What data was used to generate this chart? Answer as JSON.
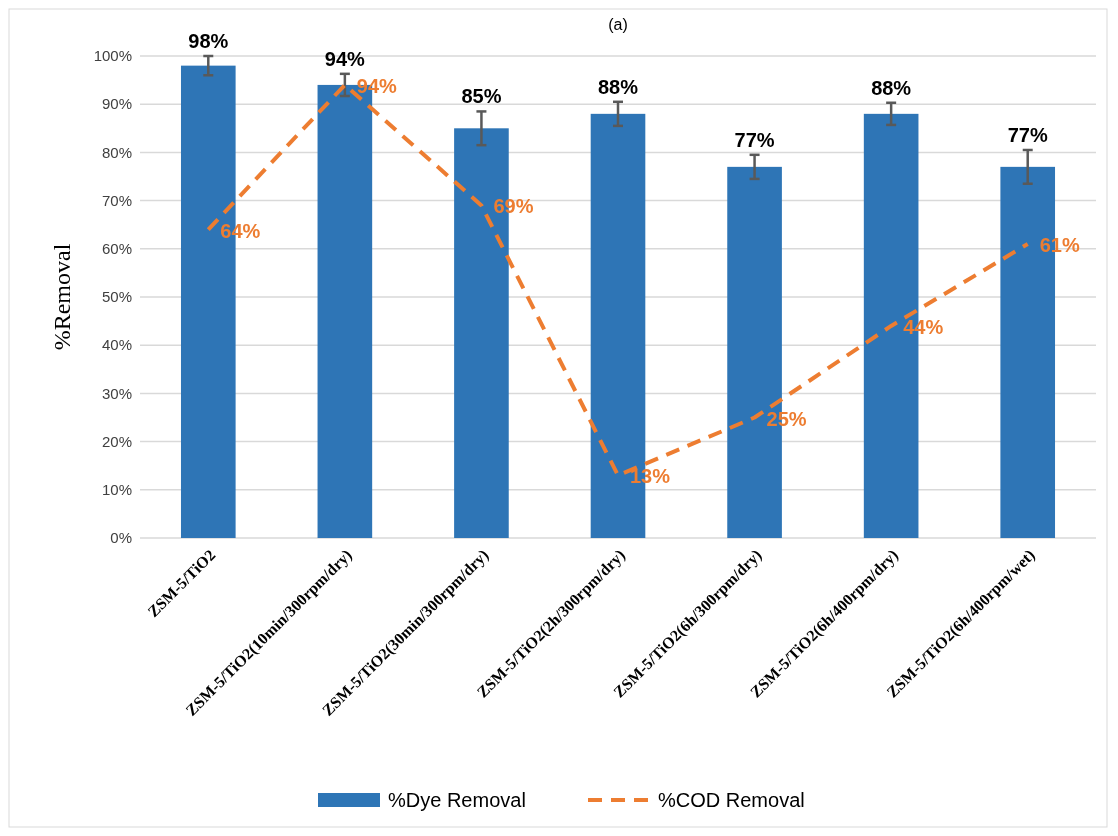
{
  "chart_data": {
    "type": "bar",
    "title": "(a)",
    "ylabel": "%Removal",
    "categories": [
      "ZSM-5/TiO2",
      "ZSM-5/TiO2(10min/300rpm/dry)",
      "ZSM-5/TiO2(30min/300rpm/dry)",
      "ZSM-5/TiO2(2h/300rpm/dry)",
      "ZSM-5/TiO2(6h/300rpm/dry)",
      "ZSM-5/TiO2(6h/400rpm/dry)",
      "ZSM-5/TiO2(6h/400rpm/wet)"
    ],
    "series": [
      {
        "name": "%Dye Removal",
        "color": "#2e75b6",
        "values": [
          98,
          94,
          85,
          88,
          77,
          88,
          77
        ],
        "errors": [
          2,
          2.3,
          3.5,
          2.5,
          2.5,
          2.3,
          3.5
        ],
        "value_labels": [
          "98%",
          "94%",
          "85%",
          "88%",
          "77%",
          "88%",
          "77%"
        ]
      },
      {
        "name": "%COD Removal",
        "type": "line",
        "color": "#ed7d31",
        "line_style": "dashed",
        "values": [
          64,
          94,
          69,
          13,
          25,
          44,
          61
        ],
        "value_labels": [
          "64%",
          "94%",
          "69%",
          "13%",
          "25%",
          "44%",
          "61%"
        ]
      }
    ],
    "ylim": [
      0,
      100
    ],
    "yticks": [
      {
        "value": 0,
        "label": "0%"
      },
      {
        "value": 10,
        "label": "10%"
      },
      {
        "value": 20,
        "label": "20%"
      },
      {
        "value": 30,
        "label": "30%"
      },
      {
        "value": 40,
        "label": "40%"
      },
      {
        "value": 50,
        "label": "50%"
      },
      {
        "value": 60,
        "label": "60%"
      },
      {
        "value": 70,
        "label": "70%"
      },
      {
        "value": 80,
        "label": "80%"
      },
      {
        "value": 90,
        "label": "90%"
      },
      {
        "value": 100,
        "label": "100%"
      }
    ],
    "grid": "y",
    "legend": "bottom"
  }
}
